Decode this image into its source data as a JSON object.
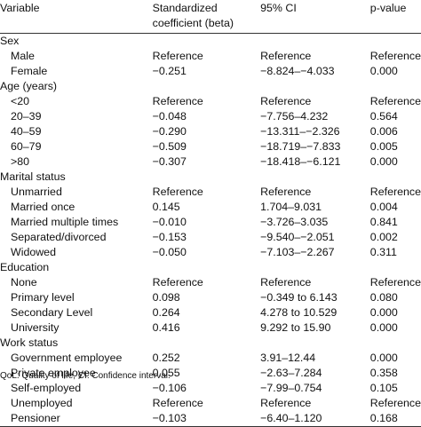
{
  "table": {
    "headers": [
      "Variable",
      "Standardized coefficient (beta)",
      "95% CI",
      "p-value"
    ],
    "header_col2_lines": [
      "Standardized",
      "coefficient (beta)"
    ],
    "groups": [
      {
        "label": "Sex",
        "rows": [
          [
            "Male",
            "Reference",
            "Reference",
            "Reference"
          ],
          [
            "Female",
            "−0.251",
            "−8.824–−4.033",
            "0.000"
          ]
        ]
      },
      {
        "label": "Age (years)",
        "rows": [
          [
            "<20",
            "Reference",
            "Reference",
            "Reference"
          ],
          [
            "20–39",
            "−0.048",
            "−7.756–4.232",
            "0.564"
          ],
          [
            "40–59",
            "−0.290",
            "−13.311–−2.326",
            "0.006"
          ],
          [
            "60–79",
            "−0.509",
            "−18.719–−7.833",
            "0.005"
          ],
          [
            ">80",
            "−0.307",
            "−18.418–−6.121",
            "0.000"
          ]
        ]
      },
      {
        "label": "Marital status",
        "rows": [
          [
            "Unmarried",
            "Reference",
            "Reference",
            "Reference"
          ],
          [
            "Married once",
            "0.145",
            "1.704–9.031",
            "0.004"
          ],
          [
            "Married multiple times",
            "−0.010",
            "−3.726–3.035",
            "0.841"
          ],
          [
            "Separated/divorced",
            "−0.153",
            "−9.540–−2.051",
            "0.002"
          ],
          [
            "Widowed",
            "−0.050",
            "−7.103–−2.267",
            "0.311"
          ]
        ]
      },
      {
        "label": "Education",
        "rows": [
          [
            "None",
            "Reference",
            "Reference",
            "Reference"
          ],
          [
            "Primary level",
            "0.098",
            "−0.349 to 6.143",
            "0.080"
          ],
          [
            "Secondary Level",
            "0.264",
            "4.278 to 10.529",
            "0.000"
          ],
          [
            "University",
            "0.416",
            "9.292 to 15.90",
            "0.000"
          ]
        ]
      },
      {
        "label": "Work status",
        "rows": [
          [
            "Government employee",
            "0.252",
            "3.91–12.44",
            "0.000"
          ],
          [
            "Private employee",
            "0.055",
            "−2.63–7.284",
            "0.358"
          ],
          [
            "Self-employed",
            "−0.106",
            "−7.99–0.754",
            "0.105"
          ],
          [
            "Unemployed",
            "Reference",
            "Reference",
            "Reference"
          ],
          [
            "Pensioner",
            "−0.103",
            "−6.40–1.120",
            "0.168"
          ]
        ]
      }
    ]
  },
  "footnote": "QoL: Quality of life, CI: Confidence interval."
}
